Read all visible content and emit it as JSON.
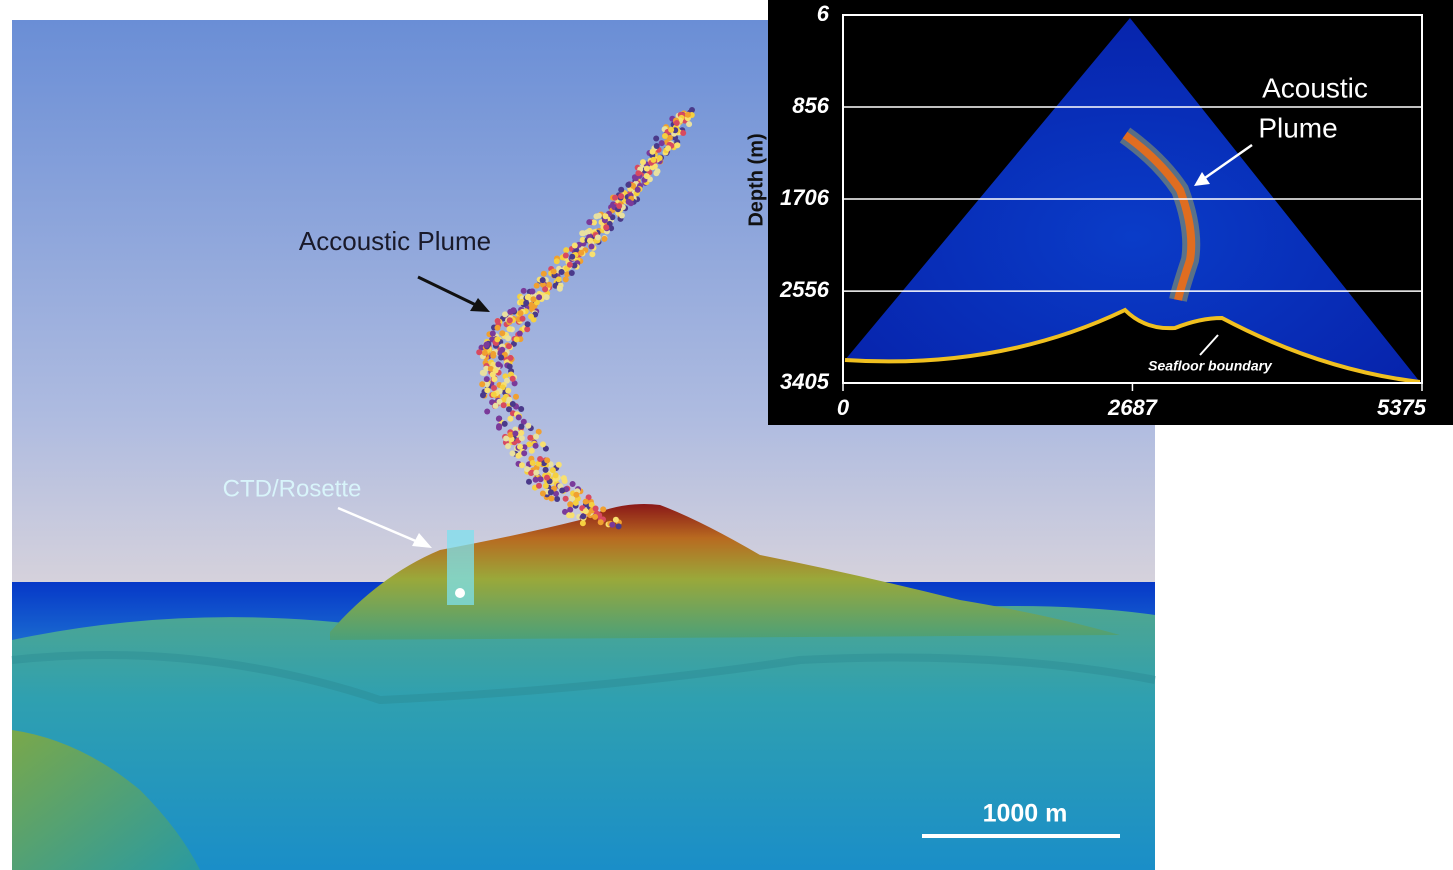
{
  "scene": {
    "plume_label": "Accoustic Plume",
    "ctd_label": "CTD/Rosette",
    "scale_bar": "1000 m"
  },
  "inset": {
    "y_label": "Depth (m)",
    "ylim": [
      6,
      3405
    ],
    "yticks": [
      6,
      856,
      1706,
      2556,
      3405
    ],
    "xlim": [
      0,
      5375
    ],
    "xticks": [
      0,
      2687,
      5375
    ],
    "grid": true,
    "plume_label": [
      "Acoustic",
      "Plume"
    ],
    "seafloor_label": "Seafloor boundary"
  }
}
